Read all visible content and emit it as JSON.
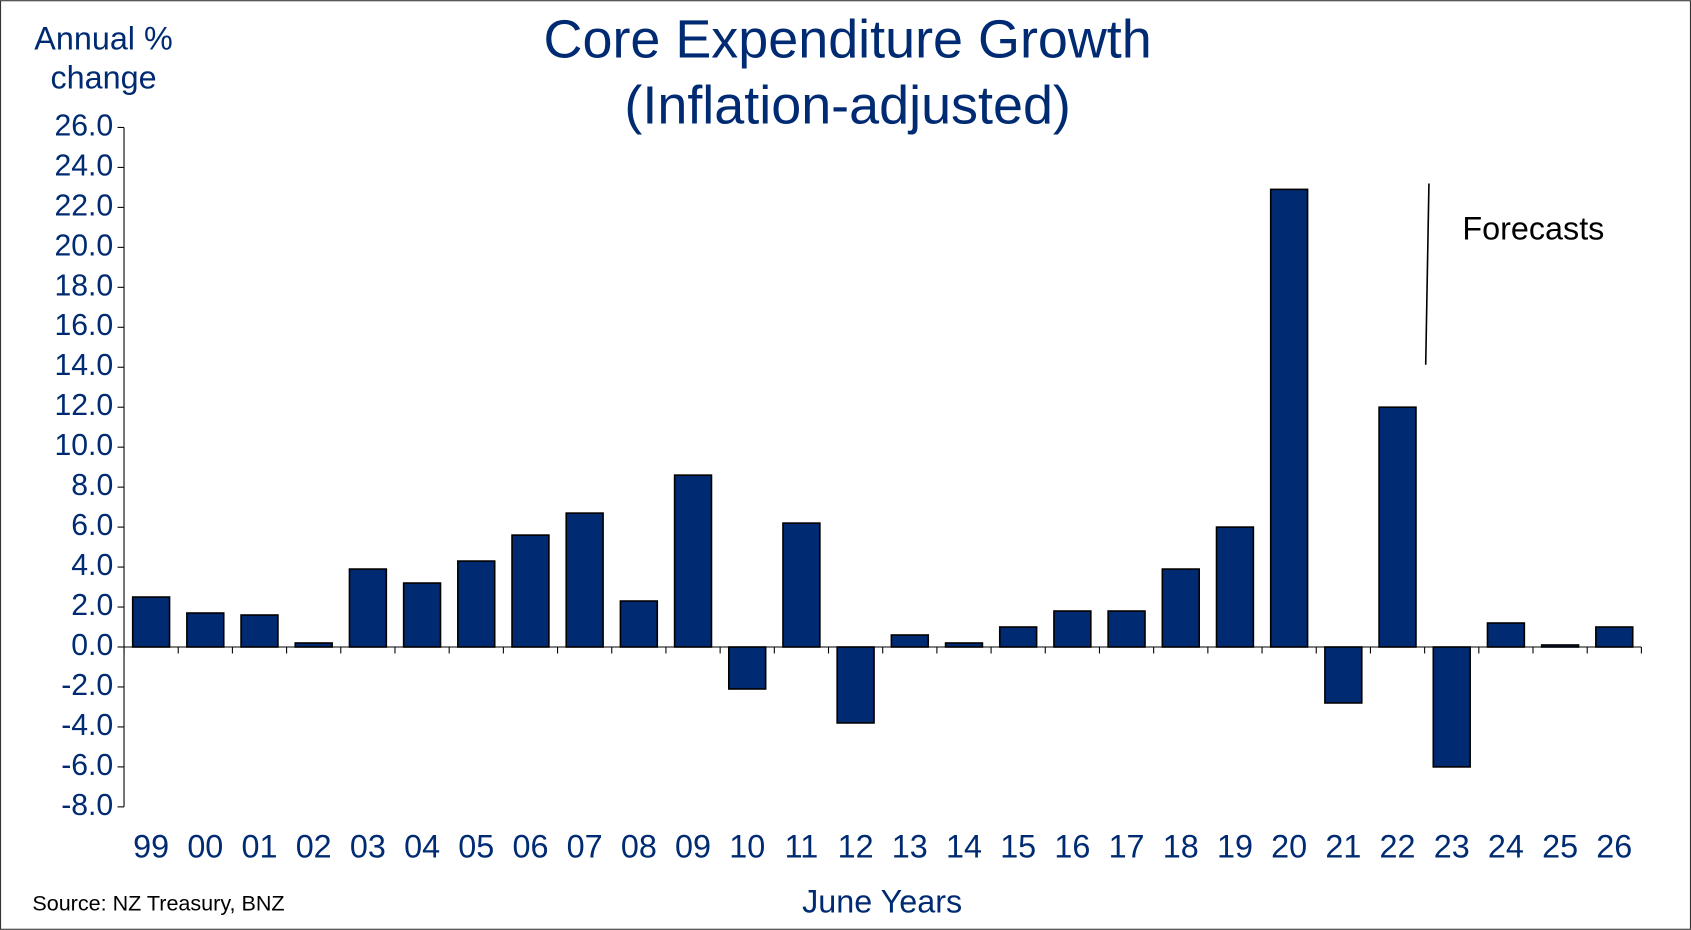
{
  "chart_data": {
    "type": "bar",
    "title": [
      "Core Expenditure Growth",
      "(Inflation-adjusted)"
    ],
    "y_label": [
      "Annual %",
      "change"
    ],
    "x_label": "June Years",
    "source": "Source: NZ Treasury, BNZ",
    "annotation": "Forecasts",
    "categories": [
      "99",
      "00",
      "01",
      "02",
      "03",
      "04",
      "05",
      "06",
      "07",
      "08",
      "09",
      "10",
      "11",
      "12",
      "13",
      "14",
      "15",
      "16",
      "17",
      "18",
      "19",
      "20",
      "21",
      "22",
      "23",
      "24",
      "25",
      "26"
    ],
    "values": [
      2.5,
      1.7,
      1.6,
      0.2,
      3.9,
      3.2,
      4.3,
      5.6,
      6.7,
      2.3,
      8.6,
      -2.1,
      6.2,
      -3.8,
      0.6,
      0.2,
      1.0,
      1.8,
      1.8,
      3.9,
      6.0,
      22.9,
      -2.8,
      12.0,
      -6.0,
      1.2,
      0.1,
      1.0
    ],
    "color": "#002b72",
    "ylim": [
      -8,
      26
    ],
    "yticks": [
      {
        "value": -8,
        "label": "-8.0"
      },
      {
        "value": -6,
        "label": "-6.0"
      },
      {
        "value": -4,
        "label": "-4.0"
      },
      {
        "value": -2,
        "label": "-2.0"
      },
      {
        "value": 0,
        "label": "0.0"
      },
      {
        "value": 2,
        "label": "2.0"
      },
      {
        "value": 4,
        "label": "4.0"
      },
      {
        "value": 6,
        "label": "6.0"
      },
      {
        "value": 8,
        "label": "8.0"
      },
      {
        "value": 10,
        "label": "10.0"
      },
      {
        "value": 12,
        "label": "12.0"
      },
      {
        "value": 14,
        "label": "14.0"
      },
      {
        "value": 16,
        "label": "16.0"
      },
      {
        "value": 18,
        "label": "18.0"
      },
      {
        "value": 20,
        "label": "20.0"
      },
      {
        "value": 22,
        "label": "22.0"
      },
      {
        "value": 24,
        "label": "24.0"
      },
      {
        "value": 26,
        "label": "26.0"
      }
    ],
    "grid": false
  }
}
